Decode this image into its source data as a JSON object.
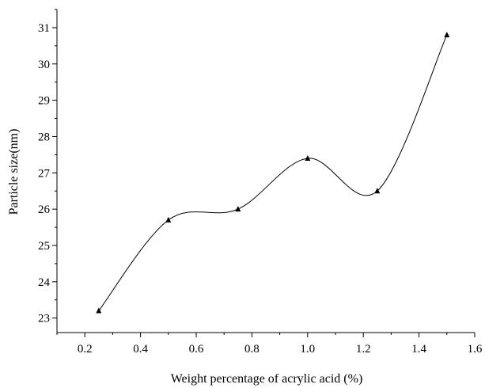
{
  "chart_data": {
    "type": "line",
    "title": "",
    "xlabel": "Weight percentage of acrylic acid (%)",
    "ylabel": "Particle size(nm)",
    "xlim": [
      0.1,
      1.6
    ],
    "ylim": [
      22.6,
      31.5
    ],
    "x_ticks": [
      0.2,
      0.4,
      0.6,
      0.8,
      1.0,
      1.2,
      1.4,
      1.6
    ],
    "x_tick_labels": [
      "0.2",
      "0.4",
      "0.6",
      "0.8",
      "1.0",
      "1.2",
      "1.4",
      "1.6"
    ],
    "y_ticks": [
      23,
      24,
      25,
      26,
      27,
      28,
      29,
      30,
      31
    ],
    "y_tick_labels": [
      "23",
      "24",
      "25",
      "26",
      "27",
      "28",
      "29",
      "30",
      "31"
    ],
    "grid": false,
    "legend": "none",
    "marker": "triangle",
    "line_style": "smooth spline",
    "series": [
      {
        "x": [
          0.25,
          0.5,
          0.75,
          1.0,
          1.25,
          1.5
        ],
        "y": [
          23.2,
          25.7,
          26.0,
          27.4,
          26.5,
          30.8
        ]
      }
    ],
    "colors": {
      "line": "#000000",
      "marker": "#000000",
      "axis": "#000000"
    }
  }
}
